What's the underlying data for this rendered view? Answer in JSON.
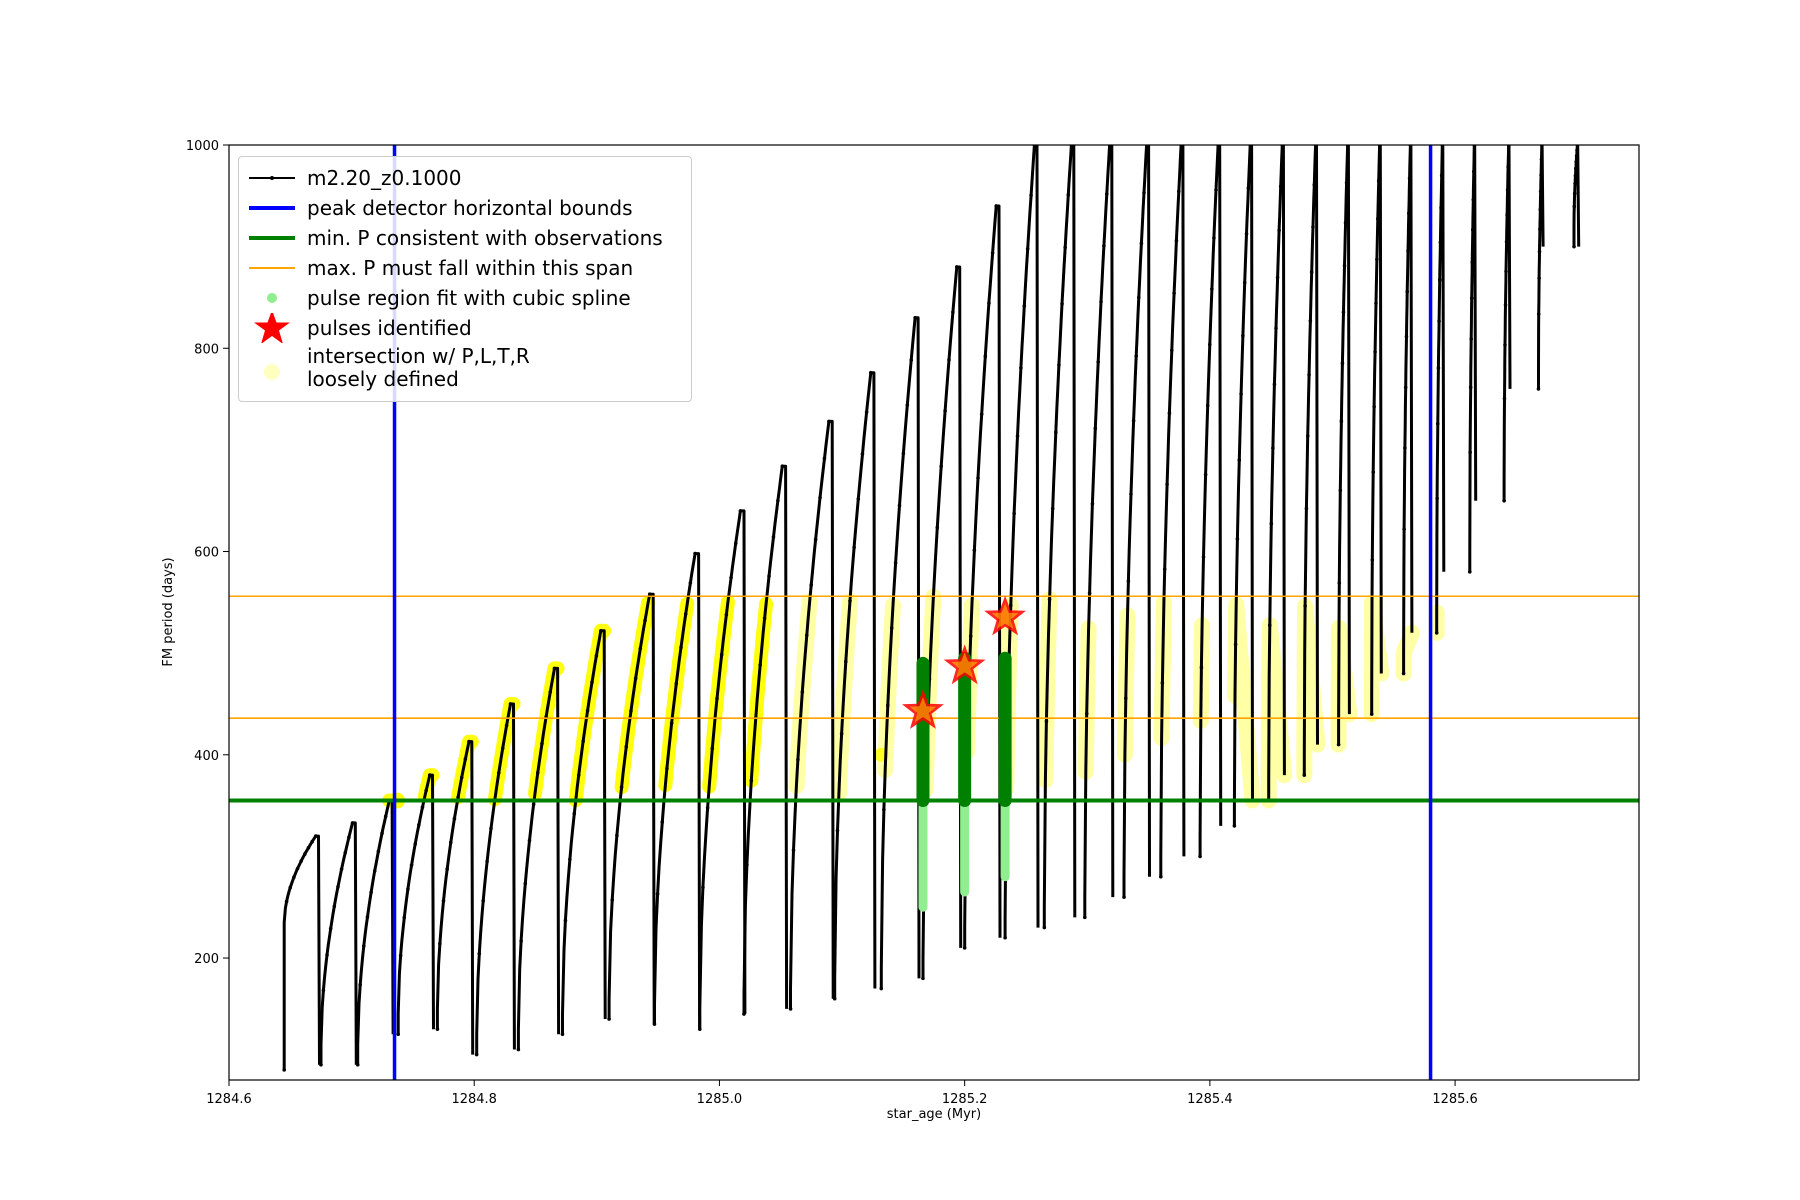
{
  "chart_data": {
    "type": "scatter",
    "title": "",
    "xlabel": "star_age (Myr)",
    "ylabel": "FM period (days)",
    "xlim": [
      1284.6,
      1285.75
    ],
    "ylim": [
      80,
      1000
    ],
    "xticks": [
      "1284.6",
      "1284.8",
      "1285.0",
      "1285.2",
      "1285.4",
      "1285.6"
    ],
    "yticks": [
      "200",
      "400",
      "600",
      "800",
      "1000"
    ],
    "legend_position": "top-left",
    "vlines": [
      {
        "x": 1284.735,
        "color": "#0000ff"
      },
      {
        "x": 1285.58,
        "color": "#0000ff"
      }
    ],
    "hlines": [
      {
        "y": 355,
        "color": "#008000"
      },
      {
        "y": 436,
        "color": "#ffa500"
      },
      {
        "y": 556,
        "color": "#ffa500"
      }
    ],
    "cycles": [
      {
        "x": 1284.645,
        "peak": 320,
        "min": 90,
        "w": 0.028
      },
      {
        "x": 1284.675,
        "peak": 333,
        "min": 95,
        "w": 0.028
      },
      {
        "x": 1284.705,
        "peak": 355,
        "min": 95,
        "w": 0.028
      },
      {
        "x": 1284.738,
        "peak": 380,
        "min": 125,
        "w": 0.028
      },
      {
        "x": 1284.77,
        "peak": 413,
        "min": 130,
        "w": 0.028
      },
      {
        "x": 1284.802,
        "peak": 450,
        "min": 105,
        "w": 0.03
      },
      {
        "x": 1284.836,
        "peak": 485,
        "min": 110,
        "w": 0.032
      },
      {
        "x": 1284.872,
        "peak": 522,
        "min": 125,
        "w": 0.034
      },
      {
        "x": 1284.91,
        "peak": 558,
        "min": 140,
        "w": 0.036
      },
      {
        "x": 1284.947,
        "peak": 598,
        "min": 135,
        "w": 0.036
      },
      {
        "x": 1284.984,
        "peak": 640,
        "min": 130,
        "w": 0.036
      },
      {
        "x": 1285.02,
        "peak": 684,
        "min": 145,
        "w": 0.034
      },
      {
        "x": 1285.058,
        "peak": 728,
        "min": 150,
        "w": 0.034
      },
      {
        "x": 1285.094,
        "peak": 776,
        "min": 160,
        "w": 0.032
      },
      {
        "x": 1285.132,
        "peak": 830,
        "min": 170,
        "w": 0.03
      },
      {
        "x": 1285.166,
        "peak": 880,
        "min": 180,
        "w": 0.03
      },
      {
        "x": 1285.2,
        "peak": 940,
        "min": 210,
        "w": 0.028
      },
      {
        "x": 1285.233,
        "peak": 1000,
        "min": 220,
        "w": 0.026
      },
      {
        "x": 1285.265,
        "peak": 1000,
        "min": 230,
        "w": 0.024
      },
      {
        "x": 1285.298,
        "peak": 1000,
        "min": 240,
        "w": 0.022
      },
      {
        "x": 1285.33,
        "peak": 1000,
        "min": 260,
        "w": 0.02
      },
      {
        "x": 1285.36,
        "peak": 1000,
        "min": 280,
        "w": 0.018
      },
      {
        "x": 1285.392,
        "peak": 1000,
        "min": 300,
        "w": 0.016
      },
      {
        "x": 1285.42,
        "peak": 1000,
        "min": 330,
        "w": 0.014
      },
      {
        "x": 1285.448,
        "peak": 1000,
        "min": 355,
        "w": 0.012
      },
      {
        "x": 1285.477,
        "peak": 1000,
        "min": 380,
        "w": 0.01
      },
      {
        "x": 1285.505,
        "peak": 1000,
        "min": 410,
        "w": 0.008
      },
      {
        "x": 1285.532,
        "peak": 1000,
        "min": 440,
        "w": 0.007
      },
      {
        "x": 1285.558,
        "peak": 1000,
        "min": 480,
        "w": 0.006
      },
      {
        "x": 1285.585,
        "peak": 1000,
        "min": 520,
        "w": 0.005
      },
      {
        "x": 1285.612,
        "peak": 1000,
        "min": 580,
        "w": 0.004
      },
      {
        "x": 1285.64,
        "peak": 1000,
        "min": 650,
        "w": 0.004
      },
      {
        "x": 1285.668,
        "peak": 1000,
        "min": 760,
        "w": 0.003
      },
      {
        "x": 1285.697,
        "peak": 1000,
        "min": 900,
        "w": 0.003
      }
    ],
    "spline_pulses": [
      {
        "x": 1285.166,
        "ymin": 250,
        "ymax": 490
      },
      {
        "x": 1285.2,
        "ymin": 265,
        "ymax": 495
      },
      {
        "x": 1285.233,
        "ymin": 280,
        "ymax": 495
      }
    ],
    "pulses_identified": [
      {
        "x": 1285.166,
        "y": 443
      },
      {
        "x": 1285.2,
        "y": 487
      },
      {
        "x": 1285.233,
        "y": 535
      }
    ],
    "series": [
      {
        "name": "m2.20_z0.1000",
        "color": "#000000"
      },
      {
        "name": "peak detector horizontal bounds",
        "color": "#0000ff"
      },
      {
        "name": "min. P consistent with observations",
        "color": "#008000"
      },
      {
        "name": "max. P must fall within this span",
        "color": "#ffa500"
      },
      {
        "name": "pulse region fit with cubic spline",
        "color": "#90ee90"
      },
      {
        "name": "pulses identified",
        "color": "#ff0000"
      },
      {
        "name": "intersection w/ P,L,T,R\nloosely defined",
        "color": "#ffff00"
      }
    ]
  }
}
